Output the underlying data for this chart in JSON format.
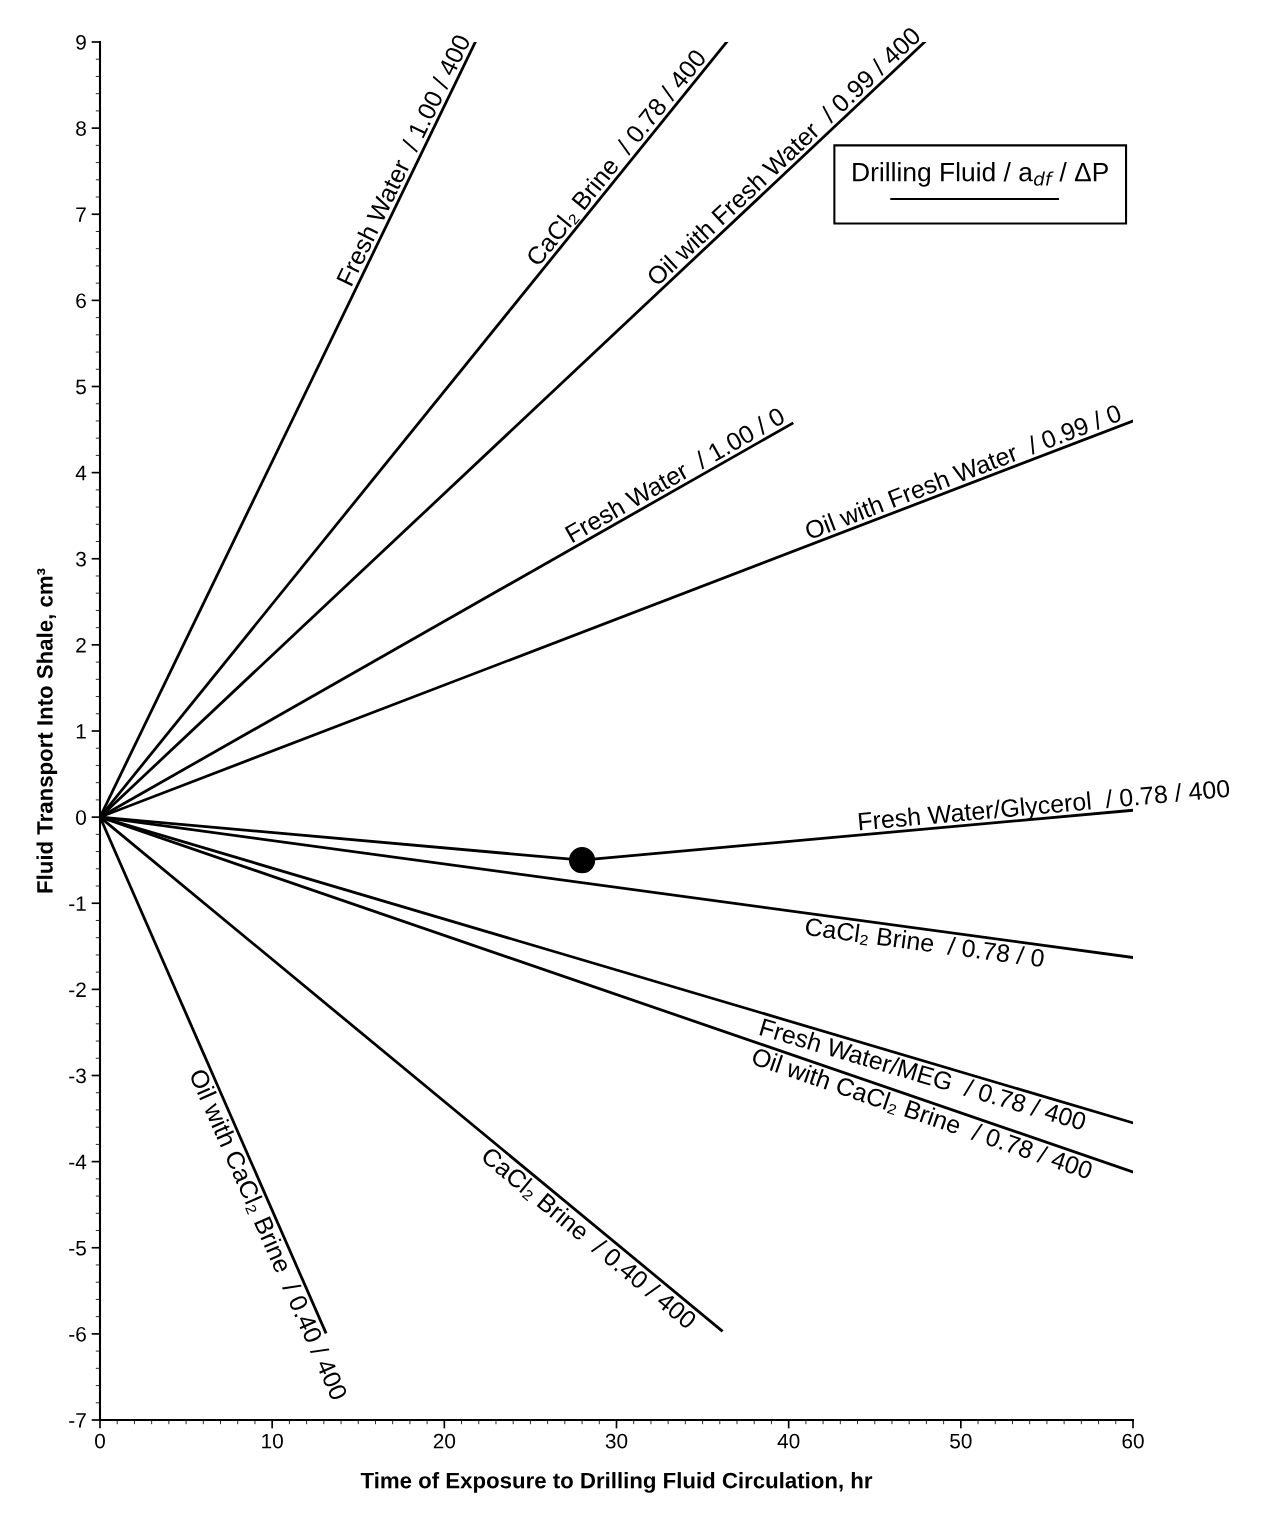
{
  "chart_data": {
    "type": "line",
    "xlabel": "Time of Exposure to Drilling Fluid Circulation, hr",
    "ylabel": "Fluid Transport Into Shale, cm³",
    "legend_title": "Drilling Fluid / a$_{df}$ / ΔP",
    "grid": false,
    "marker": "none",
    "line_style": "solid",
    "xlim": [
      0,
      60
    ],
    "ylim": [
      -7,
      9
    ],
    "xticks": [
      0,
      10,
      20,
      30,
      40,
      50,
      60
    ],
    "yticks": [
      -7,
      -6,
      -5,
      -4,
      -3,
      -2,
      -1,
      0,
      1,
      2,
      3,
      4,
      5,
      6,
      7,
      8,
      9
    ],
    "series": [
      {
        "name": "Fresh Water  / 1.00 / 400",
        "color": "#000000",
        "x": [
          0,
          21.8
        ],
        "values": [
          0,
          9.0
        ]
      },
      {
        "name": "CaCl₂ Brine  / 0.78 / 400",
        "color": "#000000",
        "x": [
          0,
          36.4
        ],
        "values": [
          0,
          9.0
        ]
      },
      {
        "name": "Oil with Fresh Water  / 0.99 / 400",
        "color": "#000000",
        "x": [
          0,
          47.9
        ],
        "values": [
          0,
          9.0
        ]
      },
      {
        "name": "Fresh Water  / 1.00 / 0",
        "color": "#000000",
        "x": [
          0,
          40.2
        ],
        "values": [
          0,
          4.57
        ]
      },
      {
        "name": "Oil with Fresh Water  / 0.99 / 0",
        "color": "#000000",
        "x": [
          0,
          60
        ],
        "values": [
          0,
          4.6
        ]
      },
      {
        "name": "Fresh Water/Glycerol  / 0.78 / 400",
        "color": "#000000",
        "x": [
          0,
          28,
          60
        ],
        "values": [
          0,
          -0.5,
          0.08
        ]
      },
      {
        "type": "scatter",
        "color": "#000000",
        "marker": "circle",
        "x": [
          28
        ],
        "values": [
          -0.5
        ]
      },
      {
        "name": "CaCl₂ Brine  / 0.78 / 0",
        "color": "#000000",
        "x": [
          0,
          60
        ],
        "values": [
          0,
          -1.63
        ]
      },
      {
        "name": "Fresh Water/MEG  / 0.78 / 400",
        "color": "#000000",
        "x": [
          0,
          60
        ],
        "values": [
          0,
          -3.55
        ]
      },
      {
        "name": "Oil with CaCl₂ Brine  / 0.78 / 400",
        "color": "#000000",
        "x": [
          0,
          60
        ],
        "values": [
          0,
          -4.12
        ]
      },
      {
        "name": "CaCl₂ Brine  / 0.40 / 400",
        "color": "#000000",
        "x": [
          0,
          36.1
        ],
        "values": [
          0,
          -5.96
        ]
      },
      {
        "name": "Oil with CaCl₂ Brine  / 0.40 / 400",
        "color": "#000000",
        "x": [
          0,
          13.1
        ],
        "values": [
          0,
          -5.98
        ]
      }
    ]
  }
}
